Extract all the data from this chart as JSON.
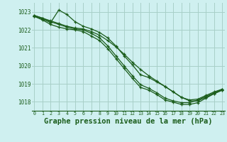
{
  "bg_color": "#cff0f0",
  "grid_color": "#a8cfc8",
  "line_color": "#1a5c1a",
  "xlabel": "Graphe pression niveau de la mer (hPa)",
  "xlabel_fontsize": 7.5,
  "xtick_labels": [
    "0",
    "1",
    "2",
    "3",
    "4",
    "5",
    "6",
    "7",
    "8",
    "9",
    "10",
    "11",
    "12",
    "13",
    "14",
    "15",
    "16",
    "17",
    "18",
    "19",
    "20",
    "21",
    "22",
    "23"
  ],
  "ylim": [
    1017.5,
    1023.5
  ],
  "yticks": [
    1018,
    1019,
    1020,
    1021,
    1022,
    1023
  ],
  "series": [
    [
      1022.8,
      1022.65,
      1022.5,
      1022.35,
      1022.2,
      1022.1,
      1022.05,
      1021.9,
      1021.7,
      1021.4,
      1021.05,
      1020.65,
      1020.2,
      1019.8,
      1019.45,
      1019.15,
      1018.85,
      1018.55,
      1018.25,
      1018.1,
      1018.15,
      1018.35,
      1018.55,
      1018.7
    ],
    [
      1022.75,
      1022.6,
      1022.4,
      1023.1,
      1022.85,
      1022.45,
      1022.2,
      1022.05,
      1021.85,
      1021.55,
      1021.1,
      1020.55,
      1020.05,
      1019.5,
      1019.35,
      1019.1,
      1018.85,
      1018.55,
      1018.25,
      1018.05,
      1018.05,
      1018.25,
      1018.45,
      1018.65
    ],
    [
      1022.8,
      1022.65,
      1022.45,
      1022.3,
      1022.15,
      1022.05,
      1022.0,
      1021.8,
      1021.55,
      1021.1,
      1020.55,
      1020.0,
      1019.45,
      1018.95,
      1018.75,
      1018.5,
      1018.2,
      1018.05,
      1017.95,
      1017.95,
      1018.1,
      1018.3,
      1018.5,
      1018.7
    ],
    [
      1022.75,
      1022.55,
      1022.3,
      1022.15,
      1022.05,
      1022.0,
      1021.9,
      1021.65,
      1021.4,
      1020.95,
      1020.4,
      1019.85,
      1019.3,
      1018.8,
      1018.65,
      1018.4,
      1018.1,
      1017.98,
      1017.85,
      1017.85,
      1017.95,
      1018.2,
      1018.45,
      1018.65
    ]
  ]
}
